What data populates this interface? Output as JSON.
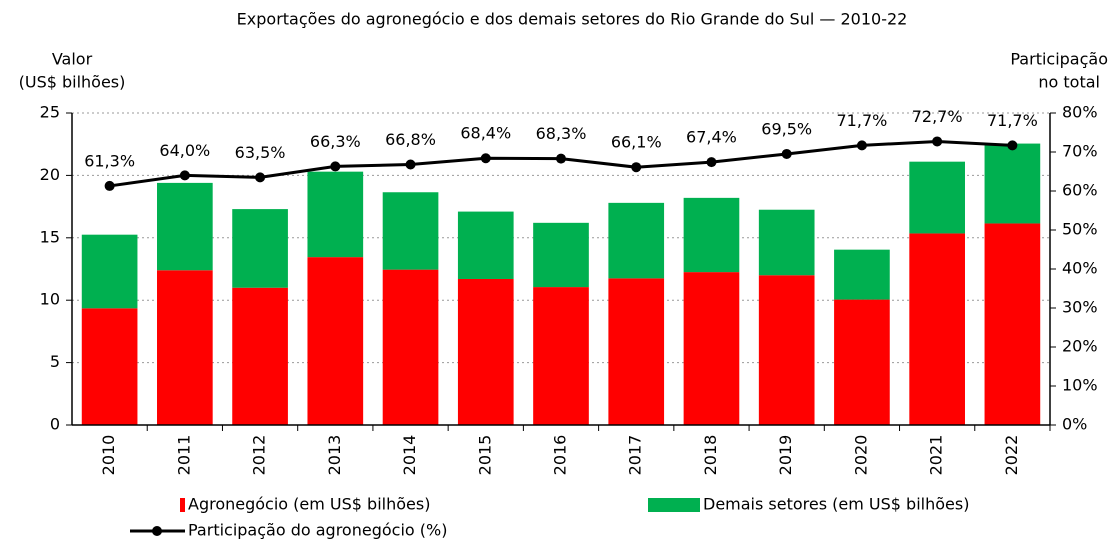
{
  "chart_data": {
    "type": "stacked_bar_line",
    "title": "Exportações do agronegócio e dos demais setores do Rio Grande do Sul — 2010-22",
    "y_label": [
      "Valor",
      "(US$ bilhões)"
    ],
    "y2_label": [
      "Participação",
      "no total"
    ],
    "categories": [
      "2010",
      "2011",
      "2012",
      "2013",
      "2014",
      "2015",
      "2016",
      "2017",
      "2018",
      "2019",
      "2020",
      "2021",
      "2022"
    ],
    "series": [
      {
        "name": "Agronegócio (em US$ bilhões)",
        "color": "#ff0000",
        "kind": "bar",
        "values": [
          9.35,
          12.4,
          11.0,
          13.45,
          12.45,
          11.7,
          11.05,
          11.75,
          12.25,
          12.0,
          10.05,
          15.35,
          16.15
        ]
      },
      {
        "name": "Demais setores (em US$ bilhões)",
        "color": "#00b050",
        "kind": "bar",
        "values": [
          5.9,
          7.0,
          6.3,
          6.85,
          6.2,
          5.4,
          5.15,
          6.05,
          5.95,
          5.25,
          4.0,
          5.75,
          6.4
        ]
      },
      {
        "name": "Participação do agronegócio (%)",
        "color": "#000000",
        "kind": "line",
        "axis": "y2",
        "values": [
          61.3,
          64.0,
          63.5,
          66.3,
          66.8,
          68.4,
          68.3,
          66.1,
          67.4,
          69.5,
          71.7,
          72.7,
          71.7
        ],
        "value_labels": [
          "61,3%",
          "64,0%",
          "63,5%",
          "66,3%",
          "66,8%",
          "68,4%",
          "68,3%",
          "66,1%",
          "67,4%",
          "69,5%",
          "71,7%",
          "72,7%",
          "71,7%"
        ]
      }
    ],
    "ylim": [
      0,
      25
    ],
    "yticks": [
      0,
      5,
      10,
      15,
      20,
      25
    ],
    "y2lim": [
      0,
      80
    ],
    "y2ticks": [
      {
        "value": 0,
        "label": "0%"
      },
      {
        "value": 10,
        "label": "10%"
      },
      {
        "value": 20,
        "label": "20%"
      },
      {
        "value": 30,
        "label": "30%"
      },
      {
        "value": 40,
        "label": "40%"
      },
      {
        "value": 50,
        "label": "50%"
      },
      {
        "value": 60,
        "label": "60%"
      },
      {
        "value": 70,
        "label": "70%"
      },
      {
        "value": 80,
        "label": "80%"
      }
    ],
    "grid": true
  }
}
